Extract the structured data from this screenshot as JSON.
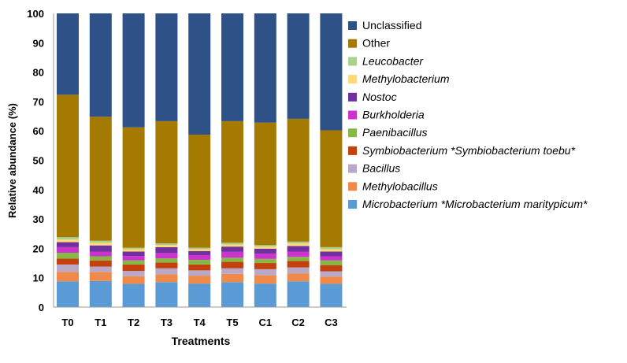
{
  "chart_data": {
    "type": "bar",
    "stacked": true,
    "title": "",
    "xlabel": "Treatments",
    "ylabel": "Relative  abundance (%)",
    "ylim": [
      0,
      100
    ],
    "yticks": [
      "0",
      "10",
      "20",
      "30",
      "40",
      "50",
      "60",
      "70",
      "80",
      "90",
      "100"
    ],
    "grid": false,
    "legend_position": "right",
    "categories": [
      "T0",
      "T1",
      "T2",
      "T3",
      "T4",
      "T5",
      "C1",
      "C2",
      "C3"
    ],
    "series": [
      {
        "name": "Microbacterium *Microbacterium maritypicum*",
        "italic": true,
        "color": "#5b9bd5",
        "values": [
          8.8,
          8.9,
          7.9,
          8.5,
          8.0,
          8.5,
          8.0,
          8.8,
          7.9
        ]
      },
      {
        "name": "Methylobacillus",
        "italic": true,
        "color": "#ef8a4a",
        "values": [
          3.2,
          3.1,
          2.6,
          2.7,
          2.7,
          2.8,
          2.9,
          2.7,
          2.5
        ]
      },
      {
        "name": "Bacillus",
        "italic": true,
        "color": "#b9a8c8",
        "values": [
          2.5,
          1.8,
          1.8,
          2.0,
          1.8,
          1.9,
          2.0,
          2.0,
          1.8
        ]
      },
      {
        "name": "Symbiobacterium *Symbiobacterium toebu*",
        "italic": true,
        "color": "#c4400c",
        "values": [
          2.0,
          2.1,
          2.2,
          2.0,
          2.0,
          2.2,
          2.1,
          2.2,
          2.1
        ]
      },
      {
        "name": "Paenibacillus",
        "italic": true,
        "color": "#86b846",
        "values": [
          2.0,
          1.4,
          1.4,
          1.4,
          1.6,
          1.4,
          1.4,
          1.4,
          1.6
        ]
      },
      {
        "name": "Burkholderia",
        "italic": true,
        "color": "#cc33cc",
        "values": [
          1.9,
          1.5,
          1.5,
          1.8,
          1.6,
          2.0,
          1.8,
          1.8,
          1.4
        ]
      },
      {
        "name": "Nostoc",
        "italic": true,
        "color": "#7030a0",
        "values": [
          1.7,
          2.2,
          1.5,
          2.0,
          1.4,
          1.8,
          1.7,
          1.9,
          1.6
        ]
      },
      {
        "name": "Methylobacterium",
        "italic": true,
        "color": "#ffd97a",
        "values": [
          0.9,
          0.9,
          0.8,
          0.7,
          0.6,
          0.7,
          0.7,
          0.9,
          0.8
        ]
      },
      {
        "name": "Leucobacter",
        "italic": true,
        "color": "#a9d18e",
        "values": [
          0.8,
          0.7,
          0.5,
          0.6,
          0.5,
          0.6,
          0.5,
          0.6,
          0.7
        ]
      },
      {
        "name": "Other",
        "italic": false,
        "color": "#a47a00",
        "values": [
          48.5,
          42.2,
          41.0,
          41.6,
          38.5,
          41.4,
          41.7,
          41.8,
          39.8
        ]
      },
      {
        "name": "Unclassified",
        "italic": false,
        "color": "#2e5288",
        "values": [
          27.7,
          35.2,
          38.8,
          36.7,
          41.3,
          36.7,
          37.2,
          35.9,
          39.8
        ]
      }
    ]
  }
}
